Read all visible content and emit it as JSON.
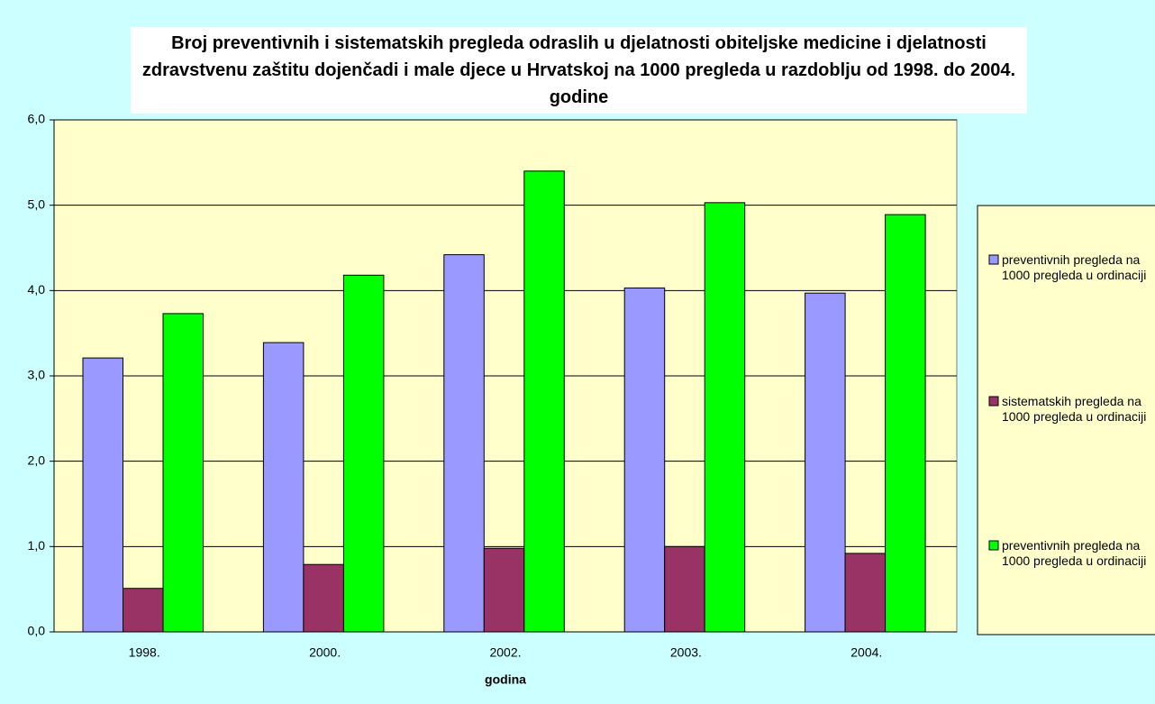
{
  "chart_data": {
    "type": "bar",
    "title": "Broj preventivnih i sistematskih pregleda odraslih u djelatnosti obiteljske medicine i djelatnosti zdravstvenu zaštitu dojenčadi i male djece u Hrvatskoj na 1000 pregleda u razdoblju od 1998. do 2004. godine",
    "x_label": "godina",
    "categories": [
      "1998.",
      "2000.",
      "2002.",
      "2003.",
      "2004."
    ],
    "series": [
      {
        "name": "preventivnih pregleda na 1000 pregleda u ordinaciji",
        "color": "#9999ff",
        "values": [
          3.21,
          3.39,
          4.42,
          4.03,
          3.97
        ]
      },
      {
        "name": "sistematskih pregleda na 1000 pregleda u ordinaciji",
        "color": "#993366",
        "values": [
          0.51,
          0.79,
          0.98,
          1.0,
          0.92
        ]
      },
      {
        "name": "preventivnih pregleda na 1000 pregleda u ordinaciji",
        "color": "#00ff00",
        "values": [
          3.73,
          4.18,
          5.4,
          5.03,
          4.89
        ]
      }
    ],
    "ylim": [
      0,
      6
    ],
    "yticks": [
      {
        "value": 0,
        "label": "0,0"
      },
      {
        "value": 1,
        "label": "1,0"
      },
      {
        "value": 2,
        "label": "2,0"
      },
      {
        "value": 3,
        "label": "3,0"
      },
      {
        "value": 4,
        "label": "4,0"
      },
      {
        "value": 5,
        "label": "5,0"
      },
      {
        "value": 6,
        "label": "6,0"
      }
    ],
    "grid": true,
    "legend": "right"
  }
}
